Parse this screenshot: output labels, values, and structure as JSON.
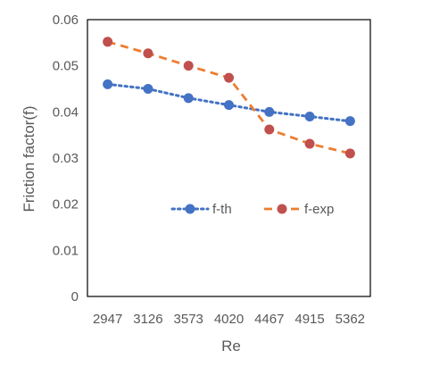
{
  "chart_data": {
    "type": "line",
    "title": "",
    "xlabel": "Re",
    "ylabel": "Friction factor(f)",
    "categories": [
      "2947",
      "3126",
      "3573",
      "4020",
      "4467",
      "4915",
      "5362"
    ],
    "ylim": [
      0,
      0.06
    ],
    "yticks": [
      "0",
      "0.01",
      "0.02",
      "0.03",
      "0.04",
      "0.05",
      "0.06"
    ],
    "grid": false,
    "legend_position": "center-right",
    "series": [
      {
        "name": "f-th",
        "values": [
          0.046,
          0.045,
          0.043,
          0.0415,
          0.04,
          0.039,
          0.038
        ],
        "color": "#4472C4",
        "line_style": "dotted"
      },
      {
        "name": "f-exp",
        "values": [
          0.0552,
          0.0527,
          0.05,
          0.0474,
          0.0362,
          0.0331,
          0.031
        ],
        "color": "#ED7D31",
        "marker_color": "#C0504D",
        "line_style": "dashed"
      }
    ]
  }
}
